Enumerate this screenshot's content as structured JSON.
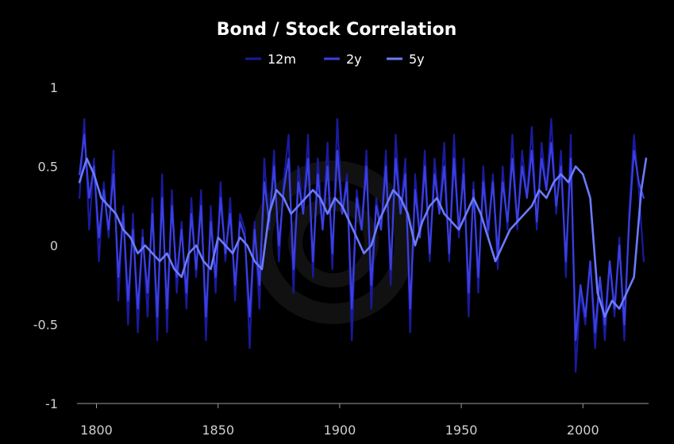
{
  "chart_data": {
    "type": "line",
    "title": "Bond / Stock Correlation",
    "xlabel": "",
    "ylabel": "",
    "xlim": [
      1792,
      2027
    ],
    "ylim": [
      -1,
      1
    ],
    "x_ticks": [
      1800,
      1850,
      1900,
      1950,
      2000
    ],
    "y_ticks": [
      1,
      0.5,
      0,
      -0.5,
      -1
    ],
    "y_tick_labels": [
      "1",
      "0.5",
      "0",
      "-0.5",
      "-1"
    ],
    "x_tick_labels": [
      "1800",
      "1850",
      "1900",
      "1950",
      "2000"
    ],
    "grid": false,
    "legend_position": "top-center",
    "series": [
      {
        "name": "12m",
        "color": "#1a1a9e",
        "x": [
          1793,
          1795,
          1797,
          1799,
          1801,
          1803,
          1805,
          1807,
          1809,
          1811,
          1813,
          1815,
          1817,
          1819,
          1821,
          1823,
          1825,
          1827,
          1829,
          1831,
          1833,
          1835,
          1837,
          1839,
          1841,
          1843,
          1845,
          1847,
          1849,
          1851,
          1853,
          1855,
          1857,
          1859,
          1861,
          1863,
          1865,
          1867,
          1869,
          1871,
          1873,
          1875,
          1877,
          1879,
          1881,
          1883,
          1885,
          1887,
          1889,
          1891,
          1893,
          1895,
          1897,
          1899,
          1901,
          1903,
          1905,
          1907,
          1909,
          1911,
          1913,
          1915,
          1917,
          1919,
          1921,
          1923,
          1925,
          1927,
          1929,
          1931,
          1933,
          1935,
          1937,
          1939,
          1941,
          1943,
          1945,
          1947,
          1949,
          1951,
          1953,
          1955,
          1957,
          1959,
          1961,
          1963,
          1965,
          1967,
          1969,
          1971,
          1973,
          1975,
          1977,
          1979,
          1981,
          1983,
          1985,
          1987,
          1989,
          1991,
          1993,
          1995,
          1997,
          1999,
          2001,
          2003,
          2005,
          2007,
          2009,
          2011,
          2013,
          2015,
          2017,
          2019,
          2021,
          2023,
          2025
        ],
        "values": [
          0.3,
          0.8,
          0.1,
          0.55,
          -0.1,
          0.4,
          0.05,
          0.6,
          -0.35,
          0.25,
          -0.5,
          0.2,
          -0.55,
          0.1,
          -0.45,
          0.3,
          -0.6,
          0.45,
          -0.55,
          0.35,
          -0.3,
          0.15,
          -0.4,
          0.3,
          -0.2,
          0.35,
          -0.6,
          0.25,
          -0.3,
          0.4,
          -0.1,
          0.3,
          -0.35,
          0.2,
          0.1,
          -0.65,
          0.15,
          -0.4,
          0.55,
          0.1,
          0.6,
          -0.1,
          0.4,
          0.7,
          -0.3,
          0.5,
          0.2,
          0.7,
          -0.2,
          0.55,
          0.1,
          0.65,
          -0.15,
          0.8,
          0.2,
          0.45,
          -0.6,
          0.35,
          0.1,
          0.6,
          -0.4,
          0.3,
          0.1,
          0.6,
          -0.25,
          0.7,
          0.2,
          0.55,
          -0.55,
          0.45,
          0.05,
          0.6,
          -0.1,
          0.55,
          0.2,
          0.65,
          -0.1,
          0.7,
          0.05,
          0.55,
          -0.45,
          0.4,
          -0.3,
          0.5,
          0.05,
          0.45,
          -0.15,
          0.5,
          0.1,
          0.7,
          0.1,
          0.6,
          0.3,
          0.75,
          0.1,
          0.65,
          0.35,
          0.8,
          0.2,
          0.6,
          -0.2,
          0.7,
          -0.8,
          -0.3,
          -0.5,
          -0.1,
          -0.65,
          -0.2,
          -0.6,
          -0.1,
          -0.45,
          0.05,
          -0.6,
          0.2,
          0.7,
          0.35,
          -0.1
        ]
      },
      {
        "name": "2y",
        "color": "#3b3fe0",
        "x": [
          1793,
          1795,
          1797,
          1799,
          1801,
          1803,
          1805,
          1807,
          1809,
          1811,
          1813,
          1815,
          1817,
          1819,
          1821,
          1823,
          1825,
          1827,
          1829,
          1831,
          1833,
          1835,
          1837,
          1839,
          1841,
          1843,
          1845,
          1847,
          1849,
          1851,
          1853,
          1855,
          1857,
          1859,
          1861,
          1863,
          1865,
          1867,
          1869,
          1871,
          1873,
          1875,
          1877,
          1879,
          1881,
          1883,
          1885,
          1887,
          1889,
          1891,
          1893,
          1895,
          1897,
          1899,
          1901,
          1903,
          1905,
          1907,
          1909,
          1911,
          1913,
          1915,
          1917,
          1919,
          1921,
          1923,
          1925,
          1927,
          1929,
          1931,
          1933,
          1935,
          1937,
          1939,
          1941,
          1943,
          1945,
          1947,
          1949,
          1951,
          1953,
          1955,
          1957,
          1959,
          1961,
          1963,
          1965,
          1967,
          1969,
          1971,
          1973,
          1975,
          1977,
          1979,
          1981,
          1983,
          1985,
          1987,
          1989,
          1991,
          1993,
          1995,
          1997,
          1999,
          2001,
          2003,
          2005,
          2007,
          2009,
          2011,
          2013,
          2015,
          2017,
          2019,
          2021,
          2023,
          2025
        ],
        "values": [
          0.45,
          0.7,
          0.3,
          0.5,
          0.05,
          0.35,
          0.1,
          0.45,
          -0.2,
          0.2,
          -0.35,
          0.1,
          -0.4,
          0.05,
          -0.3,
          0.2,
          -0.45,
          0.3,
          -0.4,
          0.25,
          -0.2,
          0.1,
          -0.3,
          0.2,
          -0.15,
          0.25,
          -0.45,
          0.15,
          -0.2,
          0.3,
          -0.05,
          0.2,
          -0.25,
          0.15,
          0.05,
          -0.45,
          0.1,
          -0.25,
          0.4,
          0.15,
          0.5,
          0.0,
          0.35,
          0.55,
          -0.15,
          0.4,
          0.2,
          0.55,
          -0.1,
          0.45,
          0.1,
          0.5,
          -0.05,
          0.6,
          0.2,
          0.4,
          -0.4,
          0.3,
          0.1,
          0.5,
          -0.25,
          0.25,
          0.1,
          0.5,
          -0.15,
          0.55,
          0.2,
          0.45,
          -0.4,
          0.35,
          0.05,
          0.5,
          -0.05,
          0.45,
          0.2,
          0.5,
          -0.05,
          0.55,
          0.1,
          0.45,
          -0.3,
          0.35,
          -0.2,
          0.4,
          0.1,
          0.4,
          -0.05,
          0.4,
          0.15,
          0.55,
          0.15,
          0.5,
          0.3,
          0.6,
          0.15,
          0.55,
          0.35,
          0.65,
          0.25,
          0.5,
          -0.1,
          0.55,
          -0.6,
          -0.25,
          -0.45,
          -0.1,
          -0.55,
          -0.2,
          -0.5,
          -0.1,
          -0.4,
          0.0,
          -0.5,
          0.15,
          0.6,
          0.4,
          0.3
        ]
      },
      {
        "name": "5y",
        "color": "#6b7bff",
        "x": [
          1793,
          1796,
          1799,
          1802,
          1805,
          1808,
          1811,
          1814,
          1817,
          1820,
          1823,
          1826,
          1829,
          1832,
          1835,
          1838,
          1841,
          1844,
          1847,
          1850,
          1853,
          1856,
          1859,
          1862,
          1865,
          1868,
          1871,
          1874,
          1877,
          1880,
          1883,
          1886,
          1889,
          1892,
          1895,
          1898,
          1901,
          1904,
          1907,
          1910,
          1913,
          1916,
          1919,
          1922,
          1925,
          1928,
          1931,
          1934,
          1937,
          1940,
          1943,
          1946,
          1949,
          1952,
          1955,
          1958,
          1961,
          1964,
          1967,
          1970,
          1973,
          1976,
          1979,
          1982,
          1985,
          1988,
          1991,
          1994,
          1997,
          2000,
          2003,
          2006,
          2009,
          2012,
          2015,
          2018,
          2021,
          2024,
          2026
        ],
        "values": [
          0.4,
          0.55,
          0.45,
          0.3,
          0.25,
          0.2,
          0.1,
          0.05,
          -0.05,
          0.0,
          -0.05,
          -0.1,
          -0.05,
          -0.15,
          -0.2,
          -0.05,
          0.0,
          -0.1,
          -0.15,
          0.05,
          0.0,
          -0.05,
          0.05,
          0.0,
          -0.1,
          -0.15,
          0.2,
          0.35,
          0.3,
          0.2,
          0.25,
          0.3,
          0.35,
          0.3,
          0.2,
          0.3,
          0.25,
          0.15,
          0.05,
          -0.05,
          0.0,
          0.15,
          0.25,
          0.35,
          0.3,
          0.2,
          0.0,
          0.15,
          0.25,
          0.3,
          0.2,
          0.15,
          0.1,
          0.2,
          0.3,
          0.2,
          0.05,
          -0.1,
          0.0,
          0.1,
          0.15,
          0.2,
          0.25,
          0.35,
          0.3,
          0.4,
          0.45,
          0.4,
          0.5,
          0.45,
          0.3,
          -0.3,
          -0.45,
          -0.35,
          -0.4,
          -0.3,
          -0.2,
          0.35,
          0.55
        ]
      }
    ]
  }
}
